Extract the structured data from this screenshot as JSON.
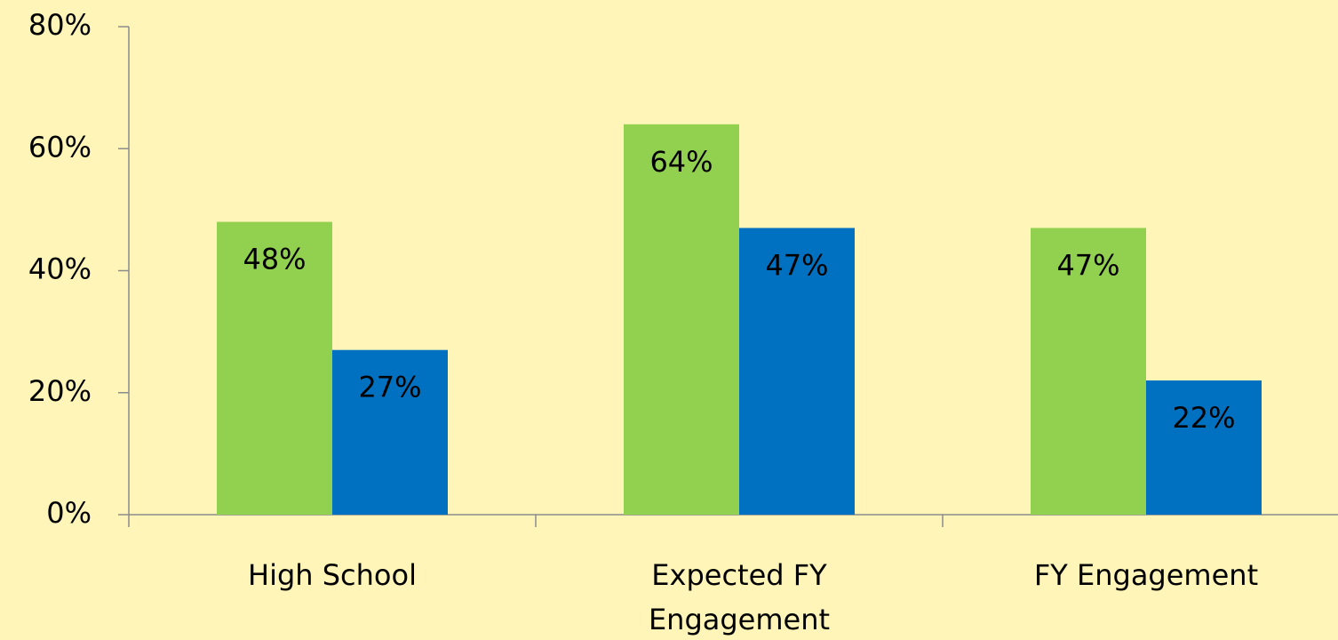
{
  "chart_data": {
    "type": "bar",
    "categories": [
      "High School",
      "Expected FY Engagement",
      "FY Engagement"
    ],
    "series": [
      {
        "color": "#92d050",
        "values": [
          48,
          64,
          47
        ],
        "value_labels": [
          "48%",
          "64%",
          "47%"
        ]
      },
      {
        "color": "#0070c0",
        "values": [
          27,
          47,
          22
        ],
        "value_labels": [
          "27%",
          "47%",
          "22%"
        ]
      }
    ],
    "ylim": [
      0,
      80
    ],
    "yticks": [
      {
        "value": 0,
        "label": "0%"
      },
      {
        "value": 20,
        "label": "20%"
      },
      {
        "value": 40,
        "label": "40%"
      },
      {
        "value": 60,
        "label": "60%"
      },
      {
        "value": 80,
        "label": "80%"
      }
    ]
  }
}
